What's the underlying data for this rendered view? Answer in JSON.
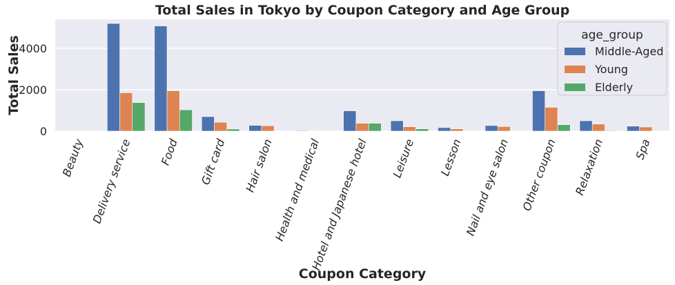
{
  "chart_data": {
    "type": "bar",
    "title": "Total Sales in Tokyo by Coupon Category and Age Group",
    "xlabel": "Coupon Category",
    "ylabel": "Total Sales",
    "ylim": [
      0,
      5400
    ],
    "yticks": [
      0,
      2000,
      4000
    ],
    "grid": true,
    "legend_title": "age_group",
    "legend_position": "top-right",
    "categories": [
      "Beauty",
      "Delivery service",
      "Food",
      "Gift card",
      "Hair salon",
      "Health and medical",
      "Hotel and Japanese hotel",
      "Leisure",
      "Lesson",
      "Nail and eye salon",
      "Other coupon",
      "Relaxation",
      "Spa"
    ],
    "series": [
      {
        "name": "Middle-Aged",
        "color": "#4c72b0",
        "values": [
          0,
          5200,
          5080,
          700,
          280,
          30,
          980,
          500,
          170,
          270,
          1950,
          500,
          240
        ]
      },
      {
        "name": "Young",
        "color": "#dd8452",
        "values": [
          0,
          1850,
          1950,
          430,
          260,
          15,
          380,
          210,
          110,
          220,
          1150,
          340,
          200
        ]
      },
      {
        "name": "Elderly",
        "color": "#55a868",
        "values": [
          0,
          1380,
          1030,
          100,
          20,
          0,
          380,
          110,
          0,
          20,
          310,
          30,
          0
        ]
      }
    ]
  }
}
